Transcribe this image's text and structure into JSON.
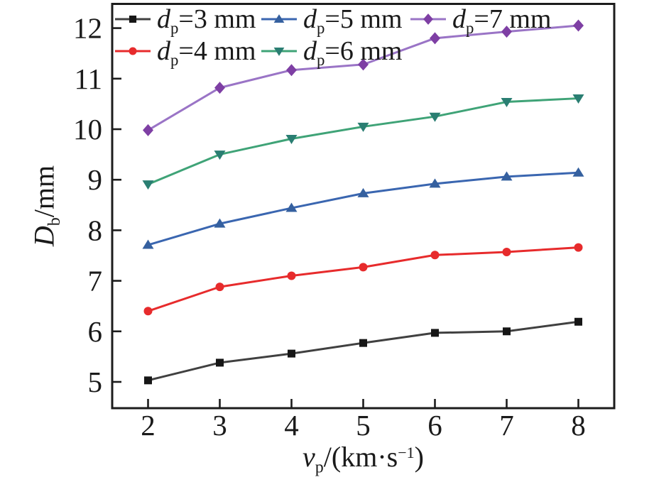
{
  "figure": {
    "background": "#ffffff",
    "frame_color": "#1c1c1c",
    "text_color": "#1a1a1a"
  },
  "chart_data": {
    "type": "line",
    "title": "",
    "xlabel": "vp/(km·s⁻¹)",
    "ylabel": "Db/mm",
    "xlabel_parts": [
      {
        "text": "v",
        "style": "italic"
      },
      {
        "text": "p",
        "style": "sub"
      },
      {
        "text": "/(km·s",
        "style": "normal"
      },
      {
        "text": "−1",
        "style": "sup"
      },
      {
        "text": ")",
        "style": "normal"
      }
    ],
    "ylabel_parts": [
      {
        "text": "D",
        "style": "italic"
      },
      {
        "text": "b",
        "style": "sub"
      },
      {
        "text": "/mm",
        "style": "normal"
      }
    ],
    "x": [
      2,
      3,
      4,
      5,
      6,
      7,
      8
    ],
    "x_ticks": [
      "2",
      "3",
      "4",
      "5",
      "6",
      "7",
      "8"
    ],
    "y_ticks": [
      "5",
      "6",
      "7",
      "8",
      "9",
      "10",
      "11",
      "12"
    ],
    "xlim": [
      1.5,
      8.5
    ],
    "ylim": [
      4.48,
      12.5
    ],
    "grid": false,
    "legend_position": "top-left-inside",
    "series": [
      {
        "name": "dp=3 mm",
        "label_parts": [
          {
            "text": "d",
            "style": "italic"
          },
          {
            "text": "p",
            "style": "sub"
          },
          {
            "text": "=3 mm",
            "style": "normal"
          }
        ],
        "marker": "square",
        "line_color": "#404040",
        "marker_color": "#161616",
        "values": [
          5.03,
          5.38,
          5.56,
          5.77,
          5.97,
          6.0,
          6.19
        ]
      },
      {
        "name": "dp=4 mm",
        "label_parts": [
          {
            "text": "d",
            "style": "italic"
          },
          {
            "text": "p",
            "style": "sub"
          },
          {
            "text": "=4 mm",
            "style": "normal"
          }
        ],
        "marker": "circle",
        "line_color": "#e72b2c",
        "marker_color": "#e72b2c",
        "values": [
          6.4,
          6.88,
          7.1,
          7.27,
          7.51,
          7.57,
          7.66
        ]
      },
      {
        "name": "dp=5 mm",
        "label_parts": [
          {
            "text": "d",
            "style": "italic"
          },
          {
            "text": "p",
            "style": "sub"
          },
          {
            "text": "=5 mm",
            "style": "normal"
          }
        ],
        "marker": "triangle-up",
        "line_color": "#3a66b0",
        "marker_color": "#35609f",
        "values": [
          7.71,
          8.13,
          8.44,
          8.73,
          8.92,
          9.06,
          9.14
        ]
      },
      {
        "name": "dp=6 mm",
        "label_parts": [
          {
            "text": "d",
            "style": "italic"
          },
          {
            "text": "p",
            "style": "sub"
          },
          {
            "text": "=6 mm",
            "style": "normal"
          }
        ],
        "marker": "triangle-down",
        "line_color": "#3fa377",
        "marker_color": "#2a7e72",
        "values": [
          8.91,
          9.5,
          9.81,
          10.05,
          10.25,
          10.54,
          10.61
        ]
      },
      {
        "name": "dp=7 mm",
        "label_parts": [
          {
            "text": "d",
            "style": "italic"
          },
          {
            "text": "p",
            "style": "sub"
          },
          {
            "text": "=7 mm",
            "style": "normal"
          }
        ],
        "marker": "diamond",
        "line_color": "#9a74c6",
        "marker_color": "#7e3fa4",
        "values": [
          9.98,
          10.82,
          11.17,
          11.28,
          11.8,
          11.93,
          12.05
        ]
      }
    ]
  }
}
